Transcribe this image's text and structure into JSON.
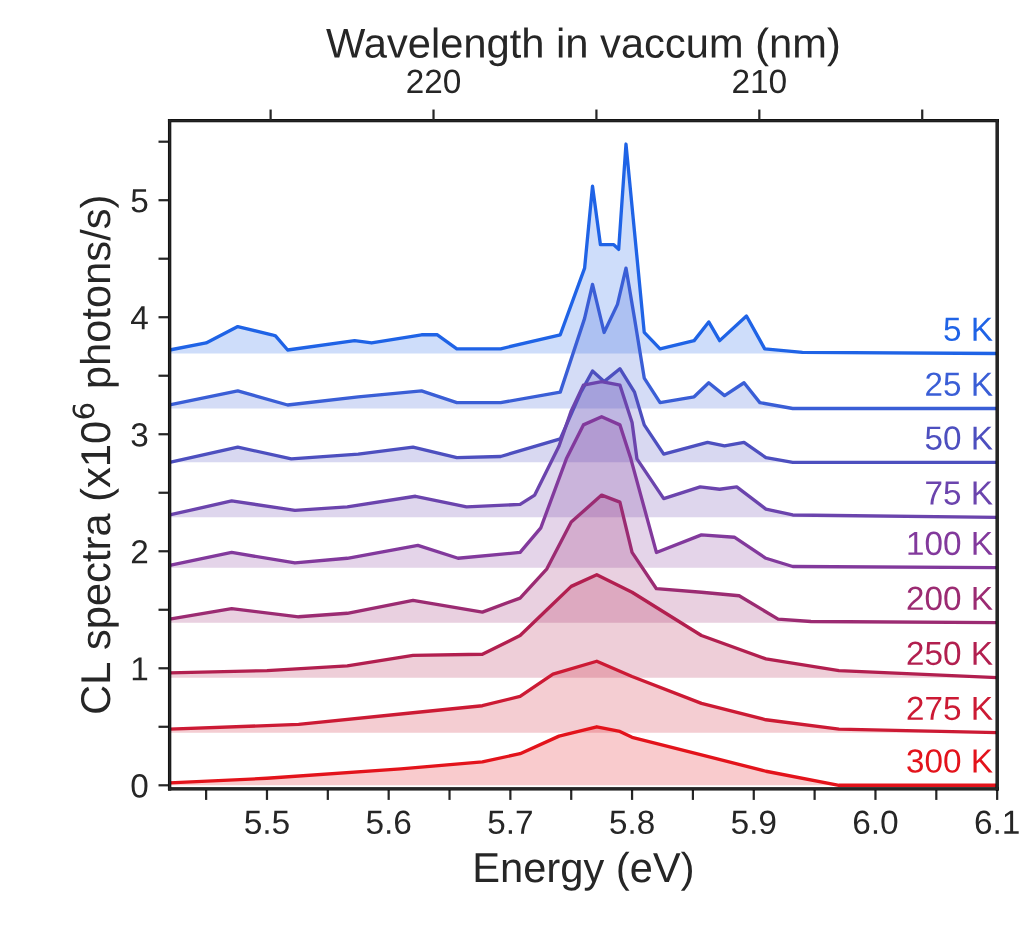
{
  "chart_data": {
    "type": "area",
    "xlabel": "Energy (eV)",
    "ylabel": "CL spectra (x10$^{6}$ photons/s)",
    "x2label": "Wavelength in vaccum (nm)",
    "xlim": [
      5.42,
      6.1
    ],
    "xticks": [
      {
        "value": 5.45,
        "label": null
      },
      5.5,
      {
        "value": 5.55,
        "label": null
      },
      5.6,
      {
        "value": 5.65,
        "label": null
      },
      5.7,
      {
        "value": 5.75,
        "label": null
      },
      5.8,
      {
        "value": 5.85,
        "label": null
      },
      5.9,
      {
        "value": 5.95,
        "label": null
      },
      {
        "value": 6.0,
        "label": "6.0"
      },
      {
        "value": 6.05,
        "label": null
      },
      6.1
    ],
    "x2lim": [
      228.1,
      202.7
    ],
    "x2ticks": [
      {
        "value": 225,
        "label": null
      },
      220,
      {
        "value": 215,
        "label": null
      },
      210,
      {
        "value": 205,
        "label": null
      }
    ],
    "ylim": [
      -0.03,
      5.68
    ],
    "yticks": [
      0,
      {
        "value": 0.5,
        "label": null
      },
      1,
      {
        "value": 1.5,
        "label": null
      },
      2,
      {
        "value": 2.5,
        "label": null
      },
      3,
      {
        "value": 3.5,
        "label": null
      },
      4,
      {
        "value": 4.5,
        "label": null
      },
      5,
      {
        "value": 5.5,
        "label": null
      }
    ],
    "grid": false,
    "legend": false,
    "series": [
      {
        "name": "5 K",
        "color": "#1f63e6",
        "x": [
          5.42,
          5.45,
          5.476,
          5.504,
          5.507,
          5.517,
          5.572,
          5.586,
          5.627,
          5.64,
          5.656,
          5.692,
          5.741,
          5.761,
          5.7675,
          5.774,
          5.785,
          5.789,
          5.795,
          5.802,
          5.81,
          5.823,
          5.851,
          5.863,
          5.872,
          5.894,
          5.909,
          5.94,
          6.1
        ],
        "values": [
          3.72,
          3.78,
          3.92,
          3.85,
          3.84,
          3.72,
          3.8,
          3.78,
          3.85,
          3.85,
          3.73,
          3.73,
          3.85,
          4.42,
          5.12,
          4.62,
          4.62,
          4.58,
          5.48,
          4.73,
          3.87,
          3.73,
          3.8,
          3.96,
          3.8,
          4.01,
          3.73,
          3.7,
          3.69
        ]
      },
      {
        "name": "25 K",
        "color": "#3a5ed6",
        "x": [
          5.42,
          5.476,
          5.517,
          5.575,
          5.627,
          5.656,
          5.692,
          5.741,
          5.761,
          5.7675,
          5.777,
          5.788,
          5.795,
          5.802,
          5.81,
          5.823,
          5.851,
          5.863,
          5.876,
          5.892,
          5.905,
          5.932,
          6.1
        ],
        "values": [
          3.25,
          3.37,
          3.25,
          3.32,
          3.37,
          3.27,
          3.27,
          3.36,
          3.99,
          4.28,
          3.87,
          4.11,
          4.42,
          3.99,
          3.48,
          3.27,
          3.32,
          3.44,
          3.33,
          3.44,
          3.27,
          3.22,
          3.22
        ]
      },
      {
        "name": "50 K",
        "color": "#4d4fbf",
        "x": [
          5.42,
          5.476,
          5.52,
          5.575,
          5.62,
          5.656,
          5.692,
          5.741,
          5.758,
          5.7675,
          5.777,
          5.79,
          5.802,
          5.81,
          5.826,
          5.862,
          5.876,
          5.892,
          5.91,
          5.932,
          6.1
        ],
        "values": [
          2.76,
          2.89,
          2.79,
          2.83,
          2.89,
          2.8,
          2.81,
          2.96,
          3.36,
          3.54,
          3.45,
          3.56,
          3.36,
          3.08,
          2.83,
          2.93,
          2.9,
          2.93,
          2.8,
          2.76,
          2.76
        ]
      },
      {
        "name": "75 K",
        "color": "#6b44ad",
        "x": [
          5.42,
          5.471,
          5.523,
          5.566,
          5.622,
          5.664,
          5.708,
          5.72,
          5.74,
          5.75,
          5.76,
          5.775,
          5.79,
          5.8,
          5.804,
          5.826,
          5.856,
          5.872,
          5.886,
          5.91,
          5.932,
          6.1
        ],
        "values": [
          2.31,
          2.43,
          2.35,
          2.38,
          2.47,
          2.38,
          2.4,
          2.48,
          2.9,
          3.2,
          3.42,
          3.45,
          3.42,
          3.1,
          2.79,
          2.45,
          2.55,
          2.53,
          2.55,
          2.36,
          2.31,
          2.29
        ]
      },
      {
        "name": "100 K",
        "color": "#82399c",
        "x": [
          5.42,
          5.471,
          5.523,
          5.566,
          5.624,
          5.657,
          5.708,
          5.725,
          5.746,
          5.76,
          5.775,
          5.79,
          5.799,
          5.82,
          5.857,
          5.884,
          5.91,
          5.932,
          6.1
        ],
        "values": [
          1.88,
          1.99,
          1.9,
          1.94,
          2.05,
          1.94,
          1.99,
          2.2,
          2.79,
          3.08,
          3.15,
          3.08,
          2.79,
          1.99,
          2.14,
          2.12,
          1.94,
          1.87,
          1.86
        ]
      },
      {
        "name": "200 K",
        "color": "#9b2b72",
        "x": [
          5.42,
          5.471,
          5.526,
          5.566,
          5.62,
          5.677,
          5.708,
          5.73,
          5.75,
          5.775,
          5.79,
          5.8,
          5.82,
          5.857,
          5.888,
          5.92,
          5.947,
          6.1
        ],
        "values": [
          1.42,
          1.51,
          1.44,
          1.47,
          1.58,
          1.48,
          1.6,
          1.85,
          2.25,
          2.48,
          2.42,
          1.99,
          1.68,
          1.65,
          1.62,
          1.42,
          1.4,
          1.39
        ]
      },
      {
        "name": "250 K",
        "color": "#b21f4f",
        "x": [
          5.42,
          5.5,
          5.566,
          5.62,
          5.677,
          5.708,
          5.73,
          5.75,
          5.771,
          5.8,
          5.857,
          5.91,
          5.97,
          6.1
        ],
        "values": [
          0.96,
          0.98,
          1.02,
          1.11,
          1.12,
          1.28,
          1.5,
          1.7,
          1.8,
          1.65,
          1.28,
          1.08,
          0.98,
          0.92
        ]
      },
      {
        "name": "275 K",
        "color": "#cc1a34",
        "x": [
          5.42,
          5.526,
          5.62,
          5.677,
          5.708,
          5.735,
          5.771,
          5.8,
          5.857,
          5.91,
          5.97,
          6.1
        ],
        "values": [
          0.48,
          0.52,
          0.62,
          0.68,
          0.76,
          0.95,
          1.06,
          0.93,
          0.7,
          0.56,
          0.48,
          0.45
        ]
      },
      {
        "name": "300 K",
        "color": "#e3131b",
        "x": [
          5.42,
          5.5,
          5.61,
          5.677,
          5.708,
          5.74,
          5.771,
          5.79,
          5.8,
          5.857,
          5.91,
          5.97,
          6.1
        ],
        "values": [
          0.02,
          0.06,
          0.14,
          0.2,
          0.27,
          0.42,
          0.5,
          0.46,
          0.41,
          0.26,
          0.12,
          0.0,
          0.0
        ]
      }
    ]
  }
}
